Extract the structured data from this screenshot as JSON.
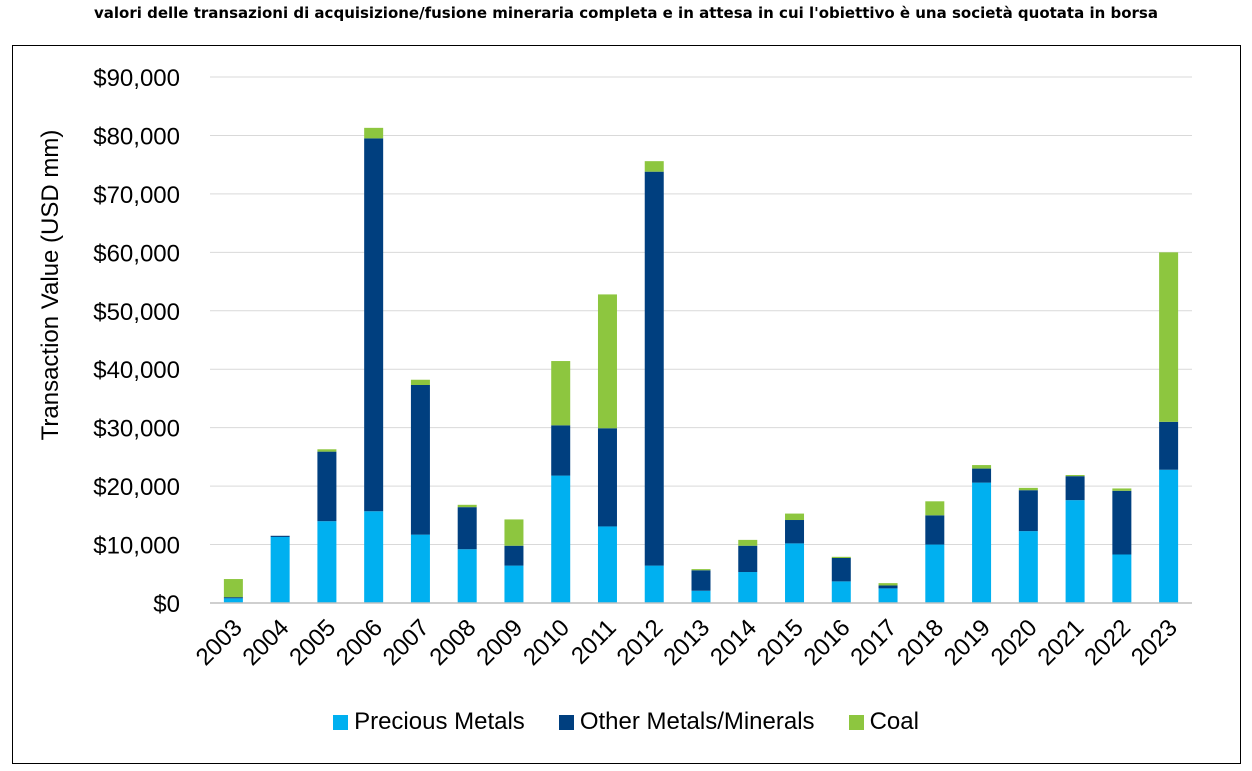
{
  "title": "valori delle transazioni di acquisizione/fusione mineraria completa e in attesa in cui l'obiettivo è una società quotata in borsa",
  "chart_data": {
    "type": "bar",
    "stacked": true,
    "categories": [
      "2003",
      "2004",
      "2005",
      "2006",
      "2007",
      "2008",
      "2009",
      "2010",
      "2011",
      "2012",
      "2013",
      "2014",
      "2015",
      "2016",
      "2017",
      "2018",
      "2019",
      "2020",
      "2021",
      "2022",
      "2023"
    ],
    "series": [
      {
        "name": "Precious Metals",
        "color": "#00b0f0",
        "values": [
          800,
          11300,
          14000,
          15700,
          11700,
          9200,
          6400,
          21800,
          13100,
          6400,
          2100,
          5300,
          10200,
          3700,
          2500,
          10000,
          20600,
          12300,
          17600,
          8300,
          22800
        ]
      },
      {
        "name": "Other Metals/Minerals",
        "color": "#003f7f",
        "values": [
          200,
          200,
          11900,
          63800,
          25600,
          7200,
          3400,
          8600,
          16800,
          67400,
          3500,
          4500,
          4000,
          4000,
          500,
          5000,
          2400,
          7000,
          4100,
          10900,
          8200
        ]
      },
      {
        "name": "Coal",
        "color": "#8dc63f",
        "values": [
          3100,
          0,
          400,
          1800,
          900,
          400,
          4500,
          11000,
          22900,
          1800,
          200,
          1000,
          1100,
          200,
          400,
          2400,
          600,
          400,
          200,
          400,
          29000
        ]
      }
    ],
    "yticks": [
      "$0",
      "$10,000",
      "$20,000",
      "$30,000",
      "$40,000",
      "$50,000",
      "$60,000",
      "$70,000",
      "$80,000",
      "$90,000"
    ],
    "ylabel": "Transaction Value (USD mm)",
    "xlabel": "",
    "ylim": [
      0,
      90000
    ],
    "ystep": 10000,
    "grid": true,
    "legend_position": "bottom"
  }
}
